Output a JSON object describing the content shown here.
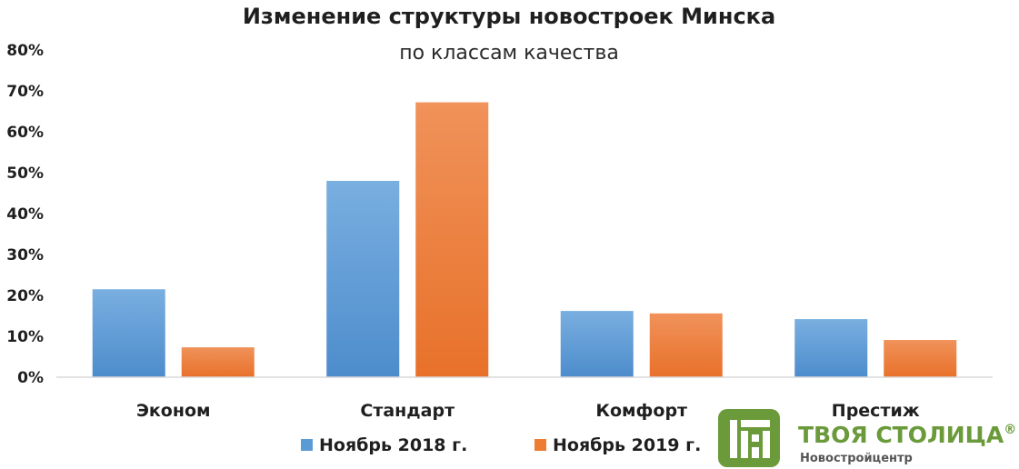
{
  "chart_data": {
    "type": "bar",
    "title": "Изменение структуры новостроек Минска",
    "subtitle": "по классам качества",
    "categories": [
      "Эконом",
      "Стандарт",
      "Комфорт",
      "Престиж"
    ],
    "series": [
      {
        "name": "Ноябрь 2018 г.",
        "values": [
          21.5,
          48,
          16.2,
          14.2
        ],
        "color": "#5b9bd5"
      },
      {
        "name": "Ноябрь 2019 г.",
        "values": [
          7.3,
          67.2,
          15.6,
          9.1
        ],
        "color": "#ed7d31"
      }
    ],
    "ylim": [
      0,
      80
    ],
    "yticks": [
      "0%",
      "10%",
      "20%",
      "30%",
      "40%",
      "50%",
      "60%",
      "70%",
      "80%"
    ],
    "grid": false,
    "legend_position": "bottom"
  },
  "logo": {
    "title": "ТВОЯ СТОЛИЦА",
    "registered_mark": "®",
    "subtitle": "Новостройцентр",
    "color": "#6a9a3a",
    "icon": "building-icon"
  }
}
